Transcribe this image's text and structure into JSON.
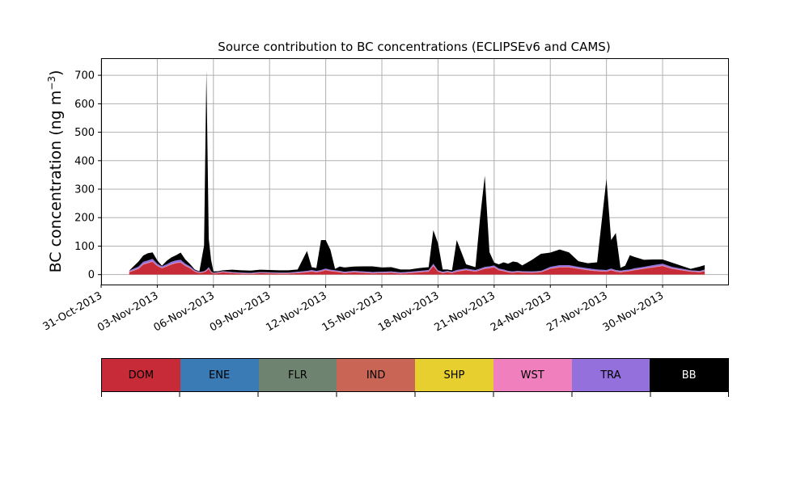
{
  "chart_data": {
    "type": "area",
    "stacked": true,
    "title": "Source contribution to BC concentrations (ECLIPSEv6 and CAMS)",
    "ylabel": "BC concentration (ng m$^{-3}$)",
    "ylabel_parts": {
      "main": "BC concentration (ng m",
      "sup": "−3",
      "end": ")"
    },
    "xlabel": "",
    "ylim": [
      -35,
      760
    ],
    "yticks": [
      0,
      100,
      200,
      300,
      400,
      500,
      600,
      700
    ],
    "xlim": [
      "2013-10-31T00:00",
      "2013-12-03T12:00"
    ],
    "xticks": [
      "2013-10-31",
      "2013-11-03",
      "2013-11-06",
      "2013-11-09",
      "2013-11-12",
      "2013-11-15",
      "2013-11-18",
      "2013-11-21",
      "2013-11-24",
      "2013-11-27",
      "2013-11-30"
    ],
    "xtick_labels": [
      "31-Oct-2013",
      "03-Nov-2013",
      "06-Nov-2013",
      "09-Nov-2013",
      "12-Nov-2013",
      "15-Nov-2013",
      "18-Nov-2013",
      "21-Nov-2013",
      "24-Nov-2013",
      "27-Nov-2013",
      "30-Nov-2013"
    ],
    "grid": true,
    "legend": "bottom",
    "x": [
      "2013-11-01T12:00",
      "2013-11-02T00:00",
      "2013-11-02T06:00",
      "2013-11-02T12:00",
      "2013-11-02T18:00",
      "2013-11-03T00:00",
      "2013-11-03T06:00",
      "2013-11-03T12:00",
      "2013-11-03T18:00",
      "2013-11-04T00:00",
      "2013-11-04T06:00",
      "2013-11-04T12:00",
      "2013-11-04T18:00",
      "2013-11-05T00:00",
      "2013-11-05T06:00",
      "2013-11-05T12:00",
      "2013-11-05T15:00",
      "2013-11-05T18:00",
      "2013-11-05T21:00",
      "2013-11-06T00:00",
      "2013-11-06T06:00",
      "2013-11-06T12:00",
      "2013-11-07T00:00",
      "2013-11-07T12:00",
      "2013-11-08T00:00",
      "2013-11-08T12:00",
      "2013-11-09T00:00",
      "2013-11-09T12:00",
      "2013-11-10T00:00",
      "2013-11-10T12:00",
      "2013-11-11T00:00",
      "2013-11-11T06:00",
      "2013-11-11T12:00",
      "2013-11-11T18:00",
      "2013-11-12T00:00",
      "2013-11-12T06:00",
      "2013-11-12T12:00",
      "2013-11-12T18:00",
      "2013-11-13T00:00",
      "2013-11-13T12:00",
      "2013-11-14T00:00",
      "2013-11-14T12:00",
      "2013-11-15T00:00",
      "2013-11-15T12:00",
      "2013-11-16T00:00",
      "2013-11-16T12:00",
      "2013-11-17T00:00",
      "2013-11-17T12:00",
      "2013-11-17T18:00",
      "2013-11-18T00:00",
      "2013-11-18T06:00",
      "2013-11-18T12:00",
      "2013-11-18T18:00",
      "2013-11-19T00:00",
      "2013-11-19T12:00",
      "2013-11-20T00:00",
      "2013-11-20T06:00",
      "2013-11-20T12:00",
      "2013-11-20T18:00",
      "2013-11-21T00:00",
      "2013-11-21T06:00",
      "2013-11-21T12:00",
      "2013-11-21T18:00",
      "2013-11-22T00:00",
      "2013-11-22T06:00",
      "2013-11-22T12:00",
      "2013-11-23T00:00",
      "2013-11-23T12:00",
      "2013-11-24T00:00",
      "2013-11-24T12:00",
      "2013-11-25T00:00",
      "2013-11-25T12:00",
      "2013-11-26T00:00",
      "2013-11-26T12:00",
      "2013-11-27T00:00",
      "2013-11-27T06:00",
      "2013-11-27T12:00",
      "2013-11-27T18:00",
      "2013-11-28T00:00",
      "2013-11-28T06:00",
      "2013-11-28T12:00",
      "2013-11-29T00:00",
      "2013-11-29T12:00",
      "2013-11-30T00:00",
      "2013-11-30T12:00",
      "2013-12-01T00:00",
      "2013-12-01T12:00",
      "2013-12-02T00:00",
      "2013-12-02T06:00"
    ],
    "series": [
      {
        "name": "DOM",
        "color": "#c62b37",
        "values": [
          8,
          20,
          35,
          40,
          45,
          30,
          22,
          28,
          35,
          40,
          42,
          30,
          22,
          10,
          5,
          8,
          12,
          20,
          8,
          3,
          5,
          8,
          5,
          3,
          2,
          5,
          4,
          3,
          3,
          5,
          8,
          10,
          8,
          10,
          15,
          12,
          10,
          8,
          5,
          8,
          6,
          4,
          5,
          6,
          3,
          5,
          8,
          10,
          30,
          10,
          5,
          8,
          5,
          10,
          15,
          10,
          15,
          20,
          22,
          25,
          15,
          12,
          8,
          6,
          8,
          7,
          6,
          8,
          20,
          25,
          25,
          20,
          15,
          12,
          10,
          15,
          10,
          8,
          10,
          12,
          15,
          20,
          25,
          30,
          20,
          15,
          10,
          8,
          12
        ]
      },
      {
        "name": "ENE",
        "color": "#3a7bb5",
        "values": [
          0,
          0,
          0,
          0,
          0,
          0,
          0,
          0,
          0,
          0,
          0,
          0,
          0,
          0,
          0,
          0,
          0,
          0,
          0,
          0,
          0,
          0,
          0,
          0,
          0,
          0,
          0,
          0,
          0,
          0,
          0,
          0,
          0,
          0,
          0,
          0,
          0,
          0,
          0,
          0,
          0,
          0,
          0,
          0,
          0,
          0,
          0,
          0,
          0,
          0,
          0,
          0,
          0,
          0,
          0,
          0,
          0,
          0,
          0,
          0,
          0,
          0,
          0,
          0,
          0,
          0,
          0,
          0,
          0,
          0,
          0,
          0,
          0,
          0,
          0,
          0,
          0,
          0,
          0,
          0,
          0,
          0,
          0,
          0,
          0,
          0,
          0,
          0,
          0
        ]
      },
      {
        "name": "FLR",
        "color": "#6e8370",
        "values": [
          0,
          0,
          0,
          0,
          0,
          0,
          0,
          0,
          0,
          0,
          0,
          0,
          0,
          0,
          0,
          0,
          0,
          0,
          0,
          0,
          0,
          0,
          0,
          0,
          0,
          0,
          0,
          0,
          0,
          0,
          0,
          0,
          0,
          0,
          0,
          0,
          0,
          0,
          0,
          0,
          0,
          0,
          0,
          0,
          0,
          0,
          0,
          0,
          0,
          0,
          0,
          0,
          0,
          0,
          0,
          0,
          0,
          0,
          0,
          0,
          0,
          0,
          0,
          0,
          0,
          0,
          0,
          0,
          0,
          0,
          0,
          0,
          0,
          0,
          0,
          0,
          0,
          0,
          0,
          0,
          0,
          0,
          0,
          0,
          0,
          0,
          0,
          0,
          0
        ]
      },
      {
        "name": "IND",
        "color": "#c96555",
        "values": [
          1,
          1,
          1,
          1,
          1,
          1,
          1,
          1,
          1,
          1,
          1,
          1,
          1,
          1,
          1,
          1,
          1,
          1,
          1,
          1,
          1,
          1,
          1,
          1,
          1,
          1,
          1,
          1,
          1,
          1,
          1,
          1,
          1,
          1,
          1,
          1,
          1,
          1,
          1,
          1,
          1,
          1,
          1,
          1,
          1,
          1,
          1,
          1,
          1,
          1,
          1,
          1,
          1,
          1,
          1,
          1,
          1,
          1,
          1,
          1,
          1,
          1,
          1,
          1,
          1,
          1,
          1,
          1,
          1,
          1,
          1,
          1,
          1,
          1,
          1,
          1,
          1,
          1,
          1,
          1,
          1,
          1,
          1,
          1,
          1,
          1,
          1,
          1,
          1
        ]
      },
      {
        "name": "SHP",
        "color": "#e6cf2e",
        "values": [
          0,
          0,
          0,
          0,
          0,
          0,
          0,
          0,
          0,
          0,
          0,
          0,
          0,
          0,
          0,
          0,
          0,
          0,
          0,
          0,
          0,
          0,
          0,
          0,
          0,
          0,
          0,
          0,
          0,
          0,
          0,
          0,
          0,
          0,
          0,
          0,
          0,
          0,
          0,
          0,
          0,
          0,
          0,
          0,
          0,
          0,
          0,
          0,
          0,
          0,
          0,
          0,
          0,
          0,
          0,
          0,
          0,
          0,
          0,
          0,
          0,
          0,
          0,
          0,
          0,
          0,
          0,
          0,
          0,
          0,
          0,
          0,
          0,
          0,
          0,
          0,
          0,
          0,
          0,
          0,
          0,
          0,
          0,
          0,
          0,
          0,
          0,
          0,
          0
        ]
      },
      {
        "name": "WST",
        "color": "#f07fbe",
        "values": [
          1,
          1,
          1,
          1,
          1,
          1,
          1,
          1,
          1,
          1,
          1,
          1,
          1,
          1,
          1,
          1,
          1,
          1,
          1,
          1,
          1,
          1,
          1,
          1,
          1,
          1,
          1,
          1,
          1,
          1,
          1,
          1,
          1,
          1,
          1,
          1,
          1,
          1,
          1,
          1,
          1,
          1,
          1,
          1,
          1,
          1,
          1,
          1,
          1,
          1,
          1,
          1,
          1,
          1,
          1,
          1,
          1,
          1,
          1,
          1,
          1,
          1,
          1,
          1,
          1,
          1,
          1,
          1,
          1,
          1,
          1,
          1,
          1,
          1,
          1,
          1,
          1,
          1,
          1,
          1,
          1,
          1,
          1,
          1,
          1,
          1,
          1,
          1,
          1
        ]
      },
      {
        "name": "TRA",
        "color": "#9370db",
        "values": [
          4,
          6,
          8,
          8,
          8,
          6,
          5,
          6,
          8,
          8,
          8,
          6,
          5,
          3,
          2,
          2,
          3,
          4,
          2,
          1,
          2,
          2,
          2,
          2,
          2,
          2,
          2,
          2,
          2,
          3,
          3,
          4,
          3,
          4,
          4,
          3,
          3,
          3,
          3,
          3,
          3,
          3,
          3,
          3,
          3,
          3,
          3,
          4,
          6,
          3,
          3,
          3,
          3,
          4,
          4,
          4,
          4,
          5,
          5,
          5,
          4,
          4,
          3,
          3,
          3,
          3,
          3,
          3,
          5,
          6,
          6,
          5,
          5,
          4,
          4,
          4,
          4,
          4,
          4,
          4,
          5,
          5,
          6,
          6,
          5,
          4,
          3,
          3,
          4
        ]
      },
      {
        "name": "BB",
        "color": "#000000",
        "values": [
          0,
          18,
          22,
          25,
          23,
          12,
          2,
          12,
          15,
          18,
          25,
          15,
          8,
          3,
          2,
          90,
          700,
          100,
          40,
          5,
          3,
          3,
          8,
          8,
          8,
          8,
          8,
          8,
          8,
          8,
          70,
          10,
          10,
          105,
          100,
          70,
          5,
          15,
          15,
          15,
          18,
          20,
          15,
          15,
          10,
          8,
          10,
          10,
          118,
          95,
          8,
          5,
          5,
          105,
          15,
          10,
          180,
          320,
          50,
          10,
          15,
          25,
          25,
          35,
          30,
          20,
          40,
          60,
          50,
          55,
          45,
          20,
          18,
          25,
          320,
          100,
          130,
          10,
          15,
          50,
          40,
          25,
          20,
          15,
          15,
          10,
          5,
          15,
          15
        ]
      }
    ]
  }
}
